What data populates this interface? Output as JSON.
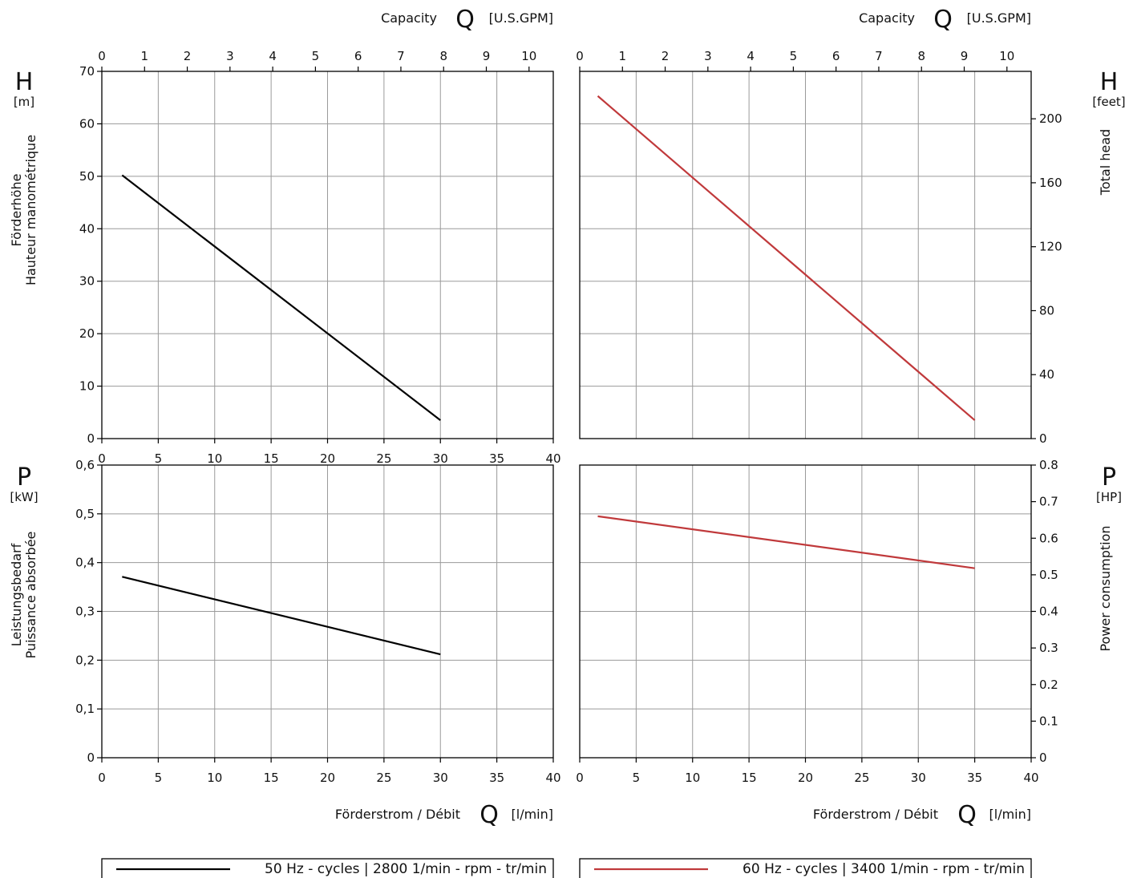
{
  "chart_data": [
    {
      "panel": "top-left",
      "type": "line",
      "xlim": [
        0,
        40
      ],
      "ylim": [
        0,
        70
      ],
      "x_ticks": [
        "0",
        "5",
        "10",
        "15",
        "20",
        "25",
        "30",
        "35",
        "40"
      ],
      "y_ticks": [
        "0",
        "10",
        "20",
        "30",
        "40",
        "50",
        "60",
        "70"
      ],
      "top_axis": {
        "label": "Capacity",
        "symbol": "Q",
        "unit": "[U.S.GPM]",
        "ticks": [
          "0",
          "1",
          "2",
          "3",
          "4",
          "5",
          "6",
          "7",
          "8",
          "9",
          "10"
        ]
      },
      "y_symbol": "H",
      "y_unit": "[m]",
      "ylabel_lines": [
        "Förderhöhe",
        "Hauteur manométrique"
      ],
      "grid": true,
      "series": [
        {
          "color": "#000000",
          "points": [
            [
              1.8,
              50.2
            ],
            [
              30,
              3.5
            ]
          ]
        }
      ]
    },
    {
      "panel": "top-right",
      "type": "line",
      "xlim": [
        0,
        40
      ],
      "ylim": [
        0,
        70
      ],
      "right_ticks": [
        "0",
        "40",
        "80",
        "120",
        "160",
        "200"
      ],
      "top_axis": {
        "label": "Capacity",
        "symbol": "Q",
        "unit": "[U.S.GPM]",
        "ticks": [
          "0",
          "1",
          "2",
          "3",
          "4",
          "5",
          "6",
          "7",
          "8",
          "9",
          "10"
        ]
      },
      "y_symbol": "H",
      "y_unit": "[feet]",
      "ylabel_lines": [
        "Total head"
      ],
      "grid": true,
      "series": [
        {
          "color": "#c0393b",
          "points": [
            [
              1.6,
              65.3
            ],
            [
              35,
              3.5
            ]
          ]
        }
      ]
    },
    {
      "panel": "bottom-left",
      "type": "line",
      "xlim": [
        0,
        40
      ],
      "ylim": [
        0,
        0.6
      ],
      "x_ticks": [
        "0",
        "5",
        "10",
        "15",
        "20",
        "25",
        "30",
        "35",
        "40"
      ],
      "y_ticks": [
        "0",
        "0,1",
        "0,2",
        "0,3",
        "0,4",
        "0,5",
        "0,6"
      ],
      "xlabel": {
        "text": "Förderstrom / Débit",
        "symbol": "Q",
        "unit": "[l/min]"
      },
      "y_symbol": "P",
      "y_unit": "[kW]",
      "ylabel_lines": [
        "Leistungsbedarf",
        "Puissance absorbée"
      ],
      "grid": true,
      "series": [
        {
          "color": "#000000",
          "points": [
            [
              1.8,
              0.371
            ],
            [
              30,
              0.212
            ]
          ]
        }
      ]
    },
    {
      "panel": "bottom-right",
      "type": "line",
      "xlim": [
        0,
        40
      ],
      "ylim": [
        0,
        0.8
      ],
      "x_ticks": [
        "0",
        "5",
        "10",
        "15",
        "20",
        "25",
        "30",
        "35",
        "40"
      ],
      "right_ticks": [
        "0",
        "0.1",
        "0.2",
        "0.3",
        "0.4",
        "0.5",
        "0.6",
        "0.7",
        "0.8"
      ],
      "xlabel": {
        "text": "Förderstrom / Débit",
        "symbol": "Q",
        "unit": "[l/min]"
      },
      "y_symbol": "P",
      "y_unit": "[HP]",
      "ylabel_lines": [
        "Power consumption"
      ],
      "grid": true,
      "series": [
        {
          "color": "#c0393b",
          "points": [
            [
              1.6,
              0.66
            ],
            [
              35,
              0.518
            ]
          ]
        }
      ]
    }
  ],
  "legend": [
    {
      "label": "50 Hz - cycles | 2800 1/min - rpm - tr/min",
      "color": "#000000"
    },
    {
      "label": "60 Hz - cycles | 3400 1/min - rpm - tr/min",
      "color": "#c0393b"
    }
  ]
}
